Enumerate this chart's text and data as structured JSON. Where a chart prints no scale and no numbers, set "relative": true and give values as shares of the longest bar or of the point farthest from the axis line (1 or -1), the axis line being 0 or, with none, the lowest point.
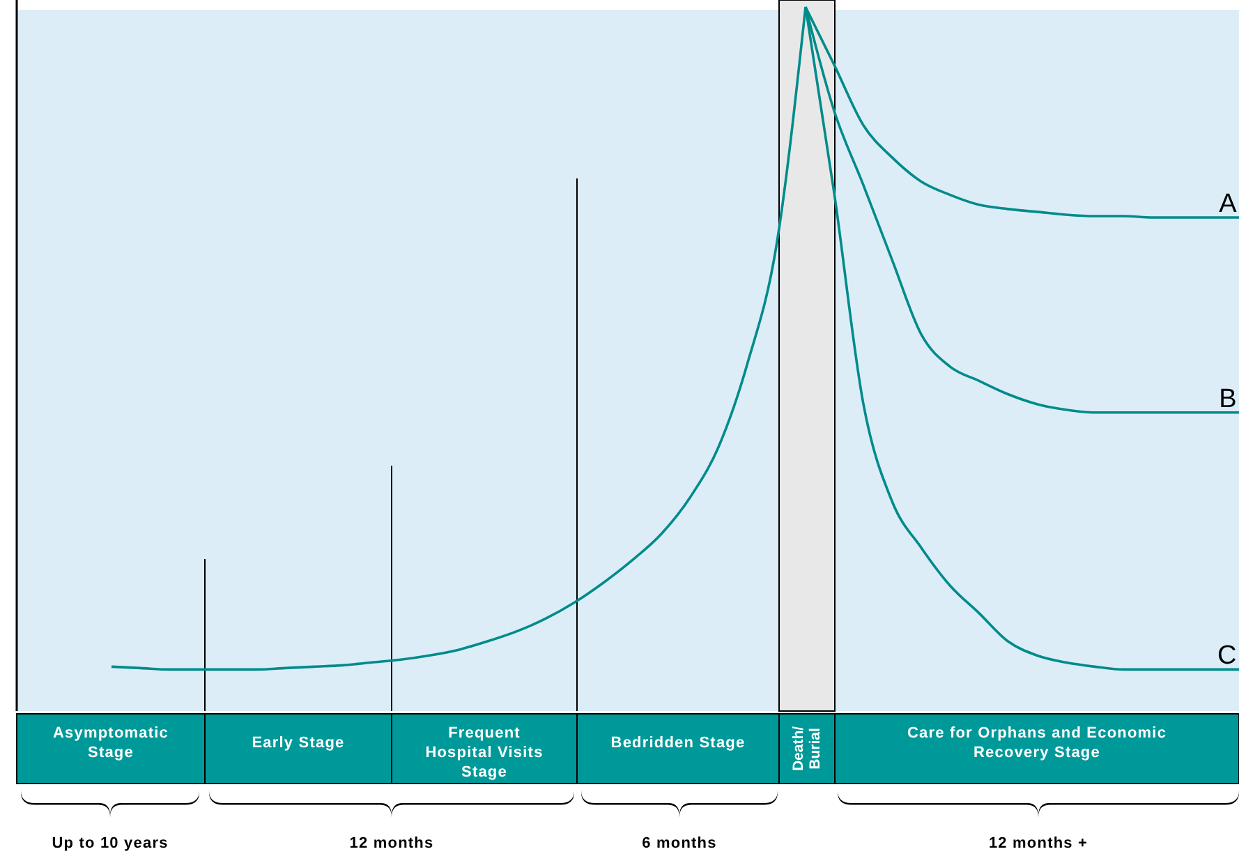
{
  "chart_data": {
    "type": "line",
    "relative": true,
    "categories": [
      null,
      null,
      null,
      null,
      null,
      null,
      null,
      null,
      null,
      null,
      null,
      null,
      null,
      null,
      null,
      null,
      null,
      null,
      null,
      null,
      null,
      null,
      null,
      null,
      null,
      null,
      null,
      null,
      null,
      null,
      null,
      null,
      null,
      null,
      null,
      null,
      null,
      null,
      null,
      null
    ],
    "series": [
      {
        "color": "#008b8b",
        "values": [
          0.063,
          0.061,
          0.059,
          0.059,
          0.059,
          0.059,
          0.061,
          0.063,
          0.065,
          0.069,
          0.073,
          0.079,
          0.087,
          0.099,
          0.113,
          0.131,
          0.154,
          0.182,
          0.214,
          0.251,
          0.303,
          0.376,
          0.495,
          0.663,
          1,
          null,
          null,
          null,
          null,
          null,
          null,
          null,
          null,
          null,
          null,
          null,
          null,
          null,
          null,
          null
        ]
      },
      {
        "name": "A",
        "color": "#008b8b",
        "values": [
          null,
          null,
          null,
          null,
          null,
          null,
          null,
          null,
          null,
          null,
          null,
          null,
          null,
          null,
          null,
          null,
          null,
          null,
          null,
          null,
          null,
          null,
          null,
          null,
          1,
          0.917,
          0.832,
          0.786,
          0.752,
          0.733,
          0.719,
          0.713,
          0.709,
          0.705,
          0.703,
          0.703,
          0.701,
          0.701,
          0.701,
          0.701
        ]
      },
      {
        "name": "B",
        "color": "#008b8b",
        "values": [
          null,
          null,
          null,
          null,
          null,
          null,
          null,
          null,
          null,
          null,
          null,
          null,
          null,
          null,
          null,
          null,
          null,
          null,
          null,
          null,
          null,
          null,
          null,
          null,
          1,
          0.851,
          0.747,
          0.64,
          0.535,
          0.489,
          0.469,
          0.45,
          0.436,
          0.428,
          0.424,
          0.424,
          0.424,
          0.424,
          0.424,
          0.424
        ]
      },
      {
        "name": "C",
        "color": "#008b8b",
        "values": [
          null,
          null,
          null,
          null,
          null,
          null,
          null,
          null,
          null,
          null,
          null,
          null,
          null,
          null,
          null,
          null,
          null,
          null,
          null,
          null,
          null,
          null,
          null,
          null,
          1,
          0.733,
          0.436,
          0.297,
          0.232,
          0.178,
          0.139,
          0.099,
          0.079,
          0.069,
          0.063,
          0.059,
          0.059,
          0.059,
          0.059,
          0.059
        ]
      }
    ],
    "annotations": [
      "Asymptomatic\nStage",
      "Early Stage",
      "Frequent\nHospital Visits\nStage",
      "Bedridden Stage",
      "Death/\nBurial",
      "Care for Orphans  and Economic\nRecovery Stage",
      "Up to 10 years",
      "12 months",
      "6 months",
      "12 months +"
    ]
  }
}
